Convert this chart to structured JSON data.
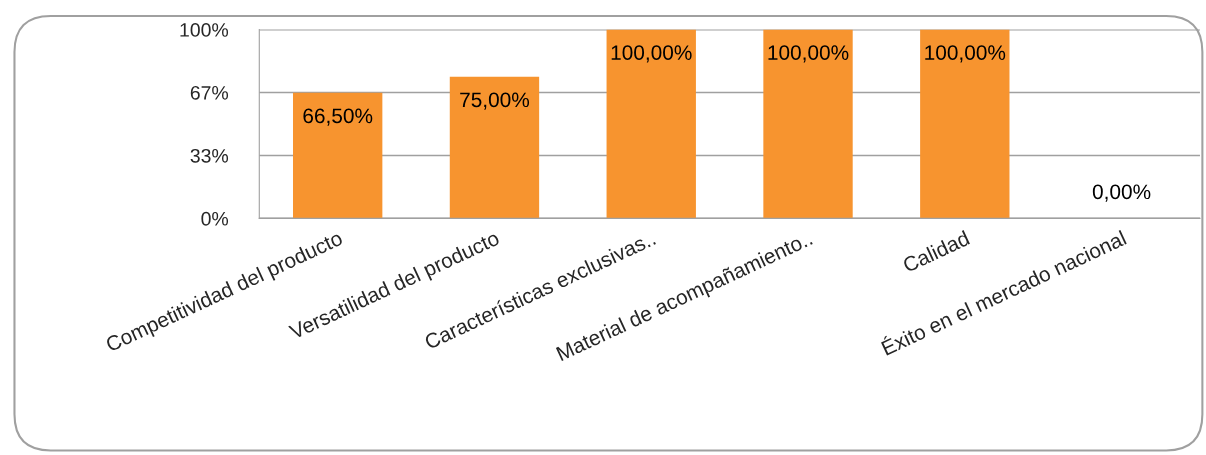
{
  "chart_data": {
    "type": "bar",
    "categories": [
      "Competitividad del producto",
      "Versatilidad del producto",
      "Características exclusivas..",
      "Material de acompañamiento..",
      "Calidad",
      "Éxito en el mercado nacional"
    ],
    "values": [
      66.5,
      75,
      100,
      100,
      100,
      0
    ],
    "value_labels": [
      "66,50%",
      "75,00%",
      "100,00%",
      "100,00%",
      "100,00%",
      "0,00%"
    ],
    "color": "#f7942f",
    "ylim": [
      0,
      100
    ],
    "yticks": [
      {
        "value": 0,
        "label": "0%"
      },
      {
        "value": 33.33,
        "label": "33%"
      },
      {
        "value": 66.67,
        "label": "67%"
      },
      {
        "value": 100,
        "label": "100%"
      }
    ],
    "grid": "y",
    "legend": false
  }
}
